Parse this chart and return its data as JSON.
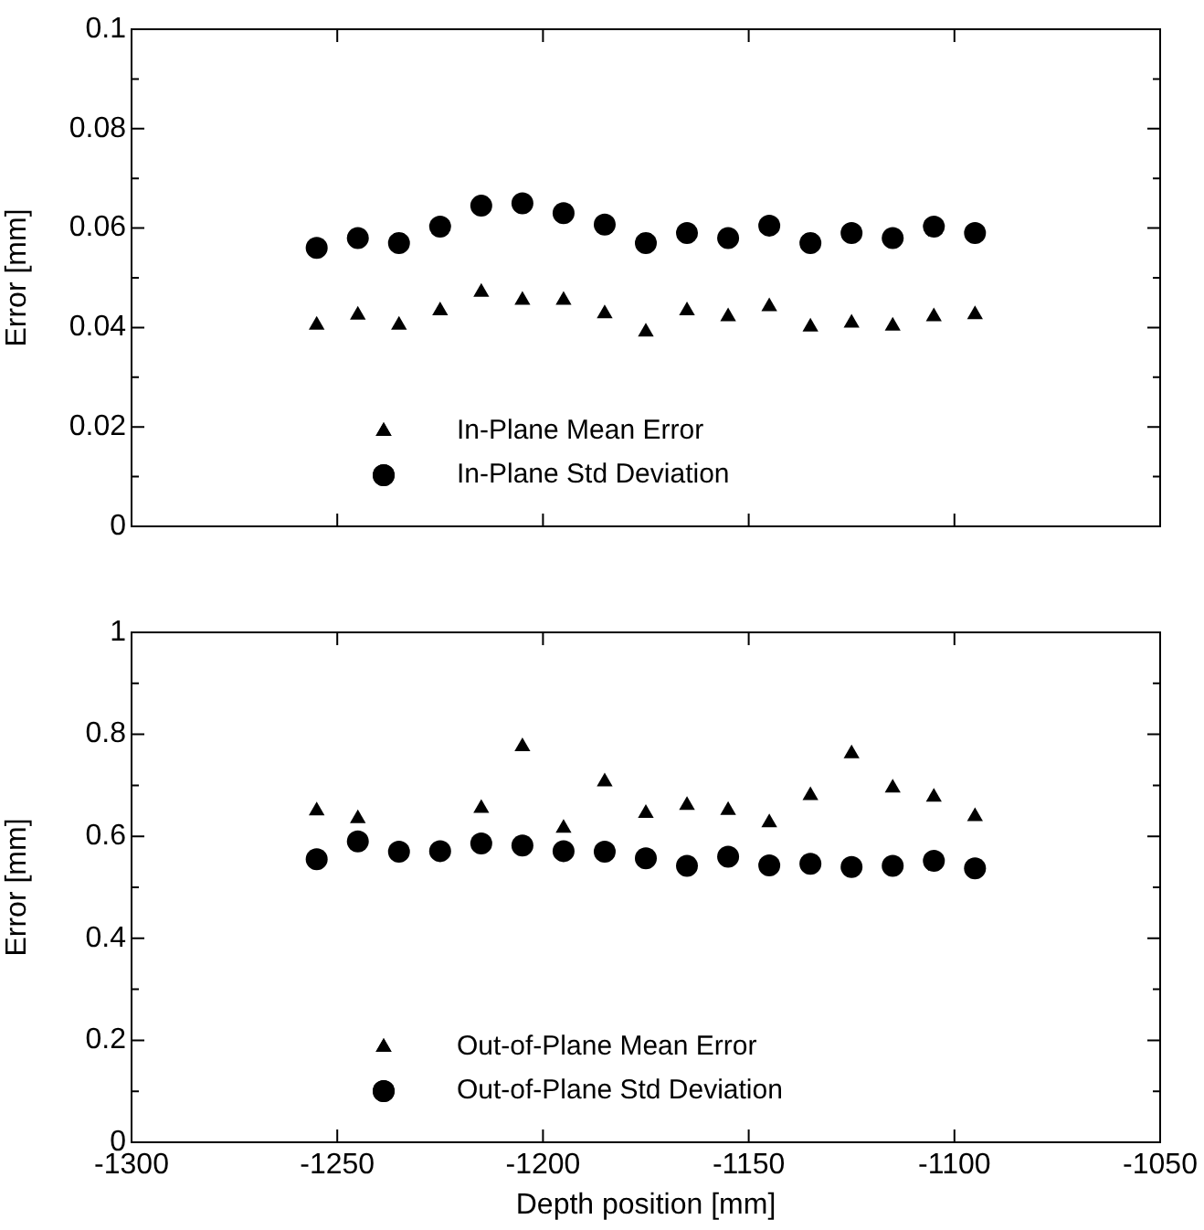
{
  "chart_data": [
    {
      "type": "scatter",
      "ylabel": "Error [mm]",
      "x": [
        -1255,
        -1245,
        -1235,
        -1225,
        -1215,
        -1205,
        -1195,
        -1185,
        -1175,
        -1165,
        -1155,
        -1145,
        -1135,
        -1125,
        -1115,
        -1105,
        -1095
      ],
      "series": [
        {
          "name": "In-Plane Mean Error",
          "color": "#000000",
          "marker": "triangle",
          "values": [
            0.0405,
            0.0425,
            0.0405,
            0.0434,
            0.0471,
            0.0455,
            0.0455,
            0.0428,
            0.0391,
            0.0434,
            0.0422,
            0.0442,
            0.0401,
            0.0409,
            0.0403,
            0.0422,
            0.0426
          ]
        },
        {
          "name": "In-Plane Std Deviation",
          "color": "#000000",
          "marker": "circle",
          "values": [
            0.056,
            0.058,
            0.057,
            0.0603,
            0.0645,
            0.065,
            0.063,
            0.0607,
            0.057,
            0.059,
            0.058,
            0.0605,
            0.057,
            0.059,
            0.058,
            0.0603,
            0.059
          ]
        }
      ],
      "xlim": [
        -1300,
        -1050
      ],
      "xticks": [
        {
          "value": -1300,
          "label": null
        },
        {
          "value": -1250,
          "label": null
        },
        {
          "value": -1200,
          "label": null
        },
        {
          "value": -1150,
          "label": null
        },
        {
          "value": -1100,
          "label": null
        },
        {
          "value": -1050,
          "label": null
        }
      ],
      "ylim": [
        0,
        0.1
      ],
      "yticks": [
        0,
        {
          "value": 0.01,
          "label": null
        },
        0.02,
        {
          "value": 0.03,
          "label": null
        },
        0.04,
        {
          "value": 0.05,
          "label": null
        },
        0.06,
        {
          "value": 0.07,
          "label": null
        },
        0.08,
        {
          "value": 0.09,
          "label": null
        },
        0.1
      ],
      "tick_labels": "y",
      "legend": "bottom left"
    },
    {
      "type": "scatter",
      "xlabel": "Depth position [mm]",
      "ylabel": "Error [mm]",
      "x": [
        -1255,
        -1245,
        -1235,
        -1225,
        -1215,
        -1205,
        -1195,
        -1185,
        -1175,
        -1165,
        -1155,
        -1145,
        -1135,
        -1125,
        -1115,
        -1105,
        -1095
      ],
      "series": [
        {
          "name": "Out-of-Plane Mean Error",
          "color": "#000000",
          "marker": "triangle",
          "values": [
            0.65,
            0.635,
            null,
            null,
            0.655,
            0.776,
            0.616,
            0.707,
            0.645,
            0.661,
            0.651,
            0.627,
            0.68,
            0.762,
            0.695,
            0.677,
            0.639
          ]
        },
        {
          "name": "Out-of-Plane Std Deviation",
          "color": "#000000",
          "marker": "circle",
          "values": [
            0.555,
            0.59,
            0.57,
            0.571,
            0.586,
            0.582,
            0.571,
            0.57,
            0.557,
            0.542,
            0.56,
            0.543,
            0.546,
            0.54,
            0.542,
            0.552,
            0.537
          ]
        }
      ],
      "xlim": [
        -1300,
        -1050
      ],
      "xticks": [
        -1300,
        -1250,
        -1200,
        -1150,
        -1100,
        -1050
      ],
      "ylim": [
        0,
        1
      ],
      "yticks": [
        0,
        {
          "value": 0.1,
          "label": null
        },
        0.2,
        {
          "value": 0.3,
          "label": null
        },
        0.4,
        {
          "value": 0.5,
          "label": null
        },
        0.6,
        {
          "value": 0.7,
          "label": null
        },
        0.8,
        {
          "value": 0.9,
          "label": null
        },
        1
      ],
      "legend": "bottom left"
    }
  ]
}
